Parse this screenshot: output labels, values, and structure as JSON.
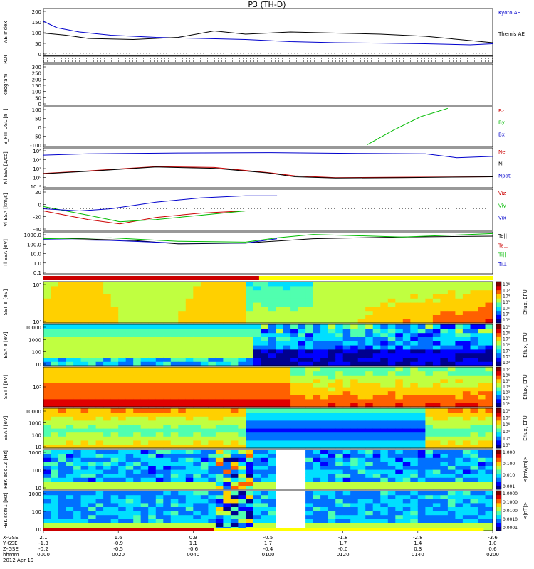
{
  "title": "P3 (TH-D)",
  "chart_data": [
    {
      "type": "line",
      "panel": "ae",
      "ylabel": "AE Index",
      "ylim": [
        -10,
        210
      ],
      "yticks": [
        "200",
        "150",
        "100",
        "50",
        "0"
      ],
      "series": [
        {
          "name": "Kyoto AE",
          "color": "#0000cc",
          "x": [
            0,
            0.03,
            0.08,
            0.15,
            0.25,
            0.35,
            0.45,
            0.55,
            0.65,
            0.75,
            0.85,
            0.95,
            1.0
          ],
          "values": [
            150,
            120,
            100,
            85,
            75,
            70,
            65,
            55,
            50,
            48,
            45,
            40,
            45
          ]
        },
        {
          "name": "Themis AE",
          "color": "#000000",
          "x": [
            0,
            0.05,
            0.1,
            0.2,
            0.3,
            0.38,
            0.45,
            0.55,
            0.65,
            0.75,
            0.85,
            0.95,
            1.0
          ],
          "values": [
            95,
            85,
            70,
            65,
            75,
            105,
            90,
            100,
            95,
            90,
            80,
            60,
            50
          ]
        }
      ]
    },
    {
      "type": "line",
      "panel": "roi",
      "ylabel": "ROI"
    },
    {
      "type": "line",
      "panel": "keogram",
      "ylabel": "keogram",
      "ylim": [
        0,
        300
      ],
      "yticks": [
        "300",
        "250",
        "200",
        "150",
        "100",
        "50",
        "0"
      ]
    },
    {
      "type": "line",
      "panel": "bfit",
      "ylabel": "B_FIT DSL [nT]",
      "ylim": [
        -120,
        120
      ],
      "yticks": [
        "100",
        "50",
        "0",
        "-50",
        "-100"
      ],
      "series": [
        {
          "name": "Bz",
          "color": "#cc0000"
        },
        {
          "name": "By",
          "color": "#00bb00",
          "x": [
            0.72,
            0.78,
            0.84,
            0.9
          ],
          "values": [
            -110,
            -20,
            60,
            110
          ]
        },
        {
          "name": "Bx",
          "color": "#0000cc"
        }
      ]
    },
    {
      "type": "line",
      "panel": "density",
      "ylabel": "Ni ESA [1/cc]",
      "ylim": [
        -3.2,
        6.2
      ],
      "yticks": [
        "10^6",
        "10^4",
        "10^2",
        "10^0",
        "10^-2"
      ],
      "series": [
        {
          "name": "Ne",
          "color": "#cc0000",
          "x": [
            0,
            0.1,
            0.25,
            0.38,
            0.5,
            0.56,
            0.65,
            0.8,
            1.0
          ],
          "values": [
            0.2,
            0.8,
            1.8,
            1.6,
            0.4,
            -0.4,
            -0.8,
            -0.7,
            -0.6
          ]
        },
        {
          "name": "Ni",
          "color": "#000000",
          "x": [
            0,
            0.1,
            0.25,
            0.38,
            0.5,
            0.56,
            0.65,
            0.8,
            1.0
          ],
          "values": [
            0.1,
            0.7,
            1.7,
            1.4,
            0.3,
            -0.6,
            -0.9,
            -0.8,
            -0.6
          ]
        },
        {
          "name": "Npot",
          "color": "#0000cc",
          "x": [
            0,
            0.1,
            0.3,
            0.5,
            0.7,
            0.85,
            0.92,
            1.0
          ],
          "values": [
            4.5,
            4.8,
            5.0,
            5.1,
            4.9,
            4.8,
            3.9,
            4.2
          ]
        }
      ]
    },
    {
      "type": "line",
      "panel": "velocity",
      "ylabel": "Vi ESA [km/s]",
      "ylim": [
        -50,
        45
      ],
      "yticks": [
        "20",
        "0",
        "-20",
        "-40"
      ],
      "series": [
        {
          "name": "Viz",
          "color": "#cc0000",
          "x": [
            0,
            0.1,
            0.17,
            0.25,
            0.35,
            0.45,
            0.52
          ],
          "values": [
            -5,
            -25,
            -35,
            -20,
            -10,
            -5,
            -5
          ]
        },
        {
          "name": "Viy",
          "color": "#00bb00",
          "x": [
            0,
            0.1,
            0.17,
            0.25,
            0.35,
            0.45,
            0.52
          ],
          "values": [
            5,
            -15,
            -30,
            -25,
            -15,
            -5,
            -5
          ]
        },
        {
          "name": "Vix",
          "color": "#0000cc",
          "x": [
            0,
            0.08,
            0.15,
            0.25,
            0.35,
            0.45,
            0.52
          ],
          "values": [
            0,
            -5,
            0,
            15,
            25,
            30,
            30
          ]
        }
      ]
    },
    {
      "type": "line",
      "panel": "temperature",
      "ylabel": "Ti ESA [eV]",
      "ylim": [
        -1.3,
        3.6
      ],
      "yticks": [
        "1000.0",
        "100.0",
        "10.0",
        "1.0",
        "0.1"
      ],
      "series": [
        {
          "name": "Te||",
          "color": "#000000",
          "x": [
            0,
            0.2,
            0.3,
            0.45,
            0.6,
            0.8,
            1.0
          ],
          "values": [
            2.9,
            2.6,
            2.2,
            2.3,
            2.8,
            3.0,
            3.1
          ]
        },
        {
          "name": "Te⊥",
          "color": "#cc0000"
        },
        {
          "name": "Ti||",
          "color": "#00bb00",
          "x": [
            0,
            0.15,
            0.3,
            0.45,
            0.52,
            0.6,
            0.8,
            1.0
          ],
          "values": [
            2.8,
            2.9,
            2.5,
            2.4,
            2.9,
            3.3,
            3.0,
            3.4
          ]
        },
        {
          "name": "Ti⊥",
          "color": "#0000cc",
          "x": [
            0,
            0.15,
            0.3,
            0.45,
            0.52
          ],
          "values": [
            2.7,
            2.6,
            2.3,
            2.3,
            2.8
          ]
        }
      ]
    },
    {
      "type": "heatmap",
      "panel": "sst-e",
      "ylabel": "SST e [eV]",
      "yticks": [
        "10^5",
        "10^4"
      ],
      "colorbar": "Eflux, EFU",
      "cbticks": [
        "10^6",
        "10^5",
        "10^4",
        "10^3",
        "10^2",
        "10^1",
        "10^0"
      ]
    },
    {
      "type": "heatmap",
      "panel": "esa-e",
      "ylabel": "ESA e [eV]",
      "yticks": [
        "10000",
        "1000",
        "100",
        "10"
      ],
      "colorbar": "Eflux, EFU",
      "cbticks": [
        "10^9",
        "10^8",
        "10^7",
        "10^6",
        "10^5",
        "10^4",
        "10^3"
      ]
    },
    {
      "type": "heatmap",
      "panel": "sst-i",
      "ylabel": "SST i [eV]",
      "yticks": [
        "10^5"
      ],
      "colorbar": "Eflux, EFU",
      "cbticks": [
        "10^7",
        "10^6",
        "10^5",
        "10^4",
        "10^3",
        "10^2",
        "10^1"
      ]
    },
    {
      "type": "heatmap",
      "panel": "esa-i",
      "ylabel": "ESA i [eV]",
      "yticks": [
        "10000",
        "1000",
        "100",
        "10"
      ],
      "colorbar": "Eflux, EFU",
      "cbticks": [
        "10^8",
        "10^7",
        "10^6",
        "10^5",
        "10^4",
        "10^3"
      ]
    },
    {
      "type": "heatmap",
      "panel": "fbk-e",
      "ylabel": "FBK edc12 [Hz]",
      "yticks": [
        "1000",
        "100",
        "10"
      ],
      "colorbar": "<|mV/m|>",
      "cbticks": [
        "1.000",
        "0.100",
        "0.010",
        "0.001"
      ]
    },
    {
      "type": "heatmap",
      "panel": "fbk-b",
      "ylabel": "FBK scm1 [Hz]",
      "yticks": [
        "1000",
        "100",
        "10"
      ],
      "colorbar": "<|nT|>",
      "cbticks": [
        "1.0000",
        "0.1000",
        "0.0100",
        "0.0010",
        "0.0001"
      ]
    }
  ],
  "xaxis": {
    "row_labels": [
      "X-GSE",
      "Y-GSE",
      "Z-GSE",
      "hhmm",
      "2012 Apr 19"
    ],
    "ticks": [
      {
        "x": 0.0,
        "rows": [
          "2.1",
          "-1.3",
          "-0.2",
          "0000"
        ]
      },
      {
        "x": 0.1667,
        "rows": [
          "1.6",
          "-0.9",
          "-0.5",
          "0020"
        ]
      },
      {
        "x": 0.3333,
        "rows": [
          "0.9",
          "1.1",
          "-0.6",
          "0040"
        ]
      },
      {
        "x": 0.5,
        "rows": [
          "-0.5",
          "1.7",
          "-0.4",
          "0100"
        ]
      },
      {
        "x": 0.6667,
        "rows": [
          "-1.8",
          "1.7",
          "-0.0",
          "0120"
        ]
      },
      {
        "x": 0.8333,
        "rows": [
          "-2.8",
          "1.4",
          "0.3",
          "0140"
        ]
      },
      {
        "x": 1.0,
        "rows": [
          "-3.6",
          "1.0",
          "0.6",
          "0200"
        ]
      }
    ]
  }
}
